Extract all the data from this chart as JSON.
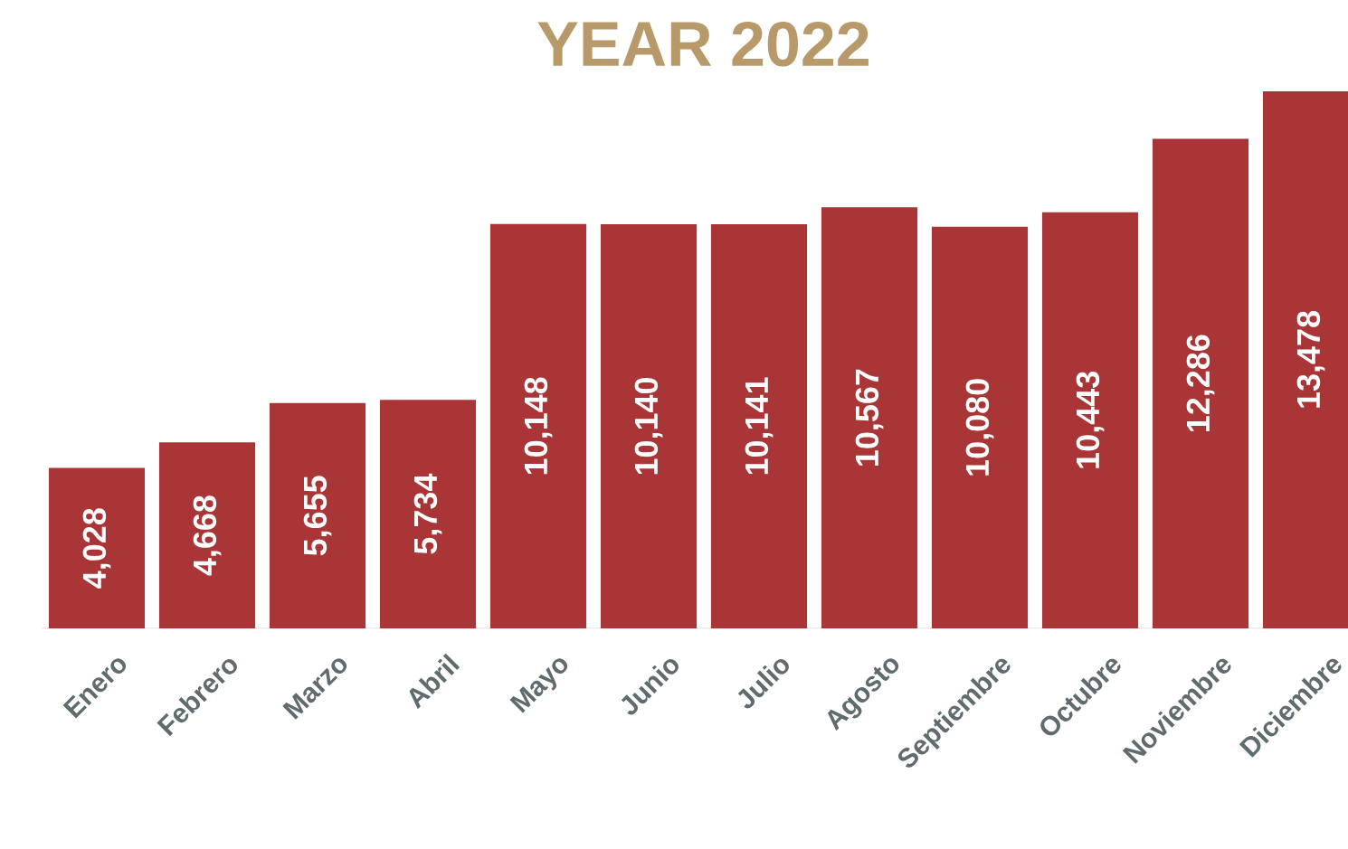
{
  "chart_data": {
    "type": "bar",
    "title": "YEAR 2022",
    "categories": [
      "Enero",
      "Febrero",
      "Marzo",
      "Abril",
      "Mayo",
      "Junio",
      "Julio",
      "Agosto",
      "Septiembre",
      "Octubre",
      "Noviembre",
      "Diciembre"
    ],
    "values": [
      4028,
      4668,
      5655,
      5734,
      10148,
      10140,
      10141,
      10567,
      10080,
      10443,
      12286,
      13478
    ],
    "value_labels": [
      "4,028",
      "4,668",
      "5,655",
      "5,734",
      "10,148",
      "10,140",
      "10,141",
      "10,567",
      "10,080",
      "10,443",
      "12,286",
      "13,478"
    ],
    "color": "#a93536"
  }
}
